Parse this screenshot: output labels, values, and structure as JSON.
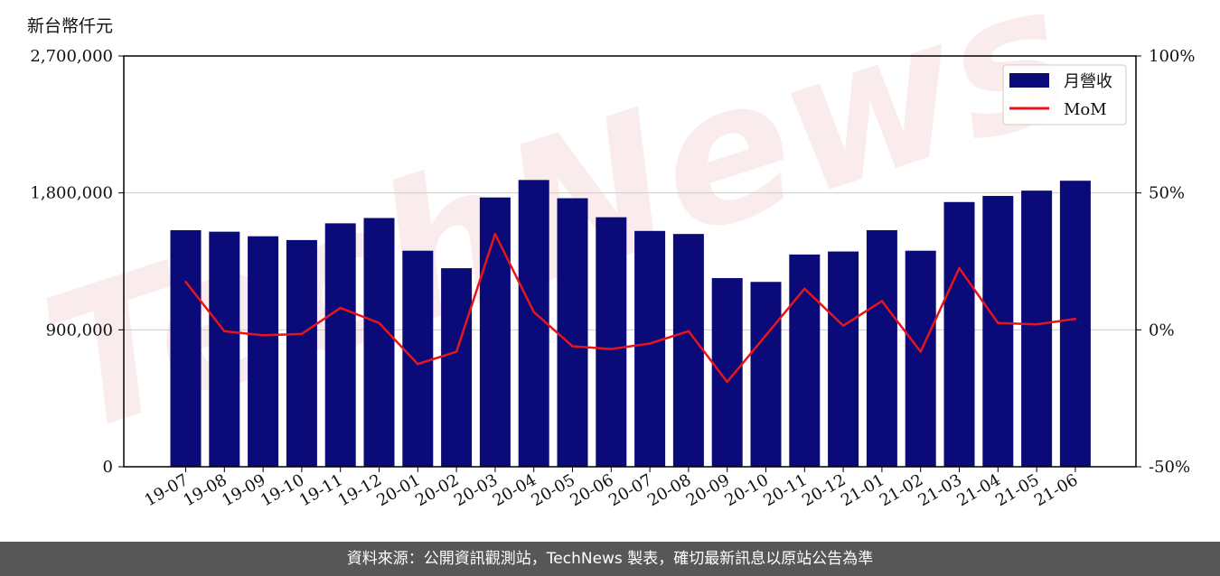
{
  "y_unit_label": "新台幣仟元",
  "footer": {
    "text": "資料來源：公開資訊觀測站，TechNews 製表，確切最新訊息以原站公告為準"
  },
  "watermark": "TechNews",
  "colors": {
    "bar": "#0a0a78",
    "line": "#e8141c",
    "footer_bg": "#575757",
    "grid": "#cccccc"
  },
  "chart_data": {
    "type": "bar",
    "categories": [
      "19-07",
      "19-08",
      "19-09",
      "19-10",
      "19-11",
      "19-12",
      "20-01",
      "20-02",
      "20-03",
      "20-04",
      "20-05",
      "20-06",
      "20-07",
      "20-08",
      "20-09",
      "20-10",
      "20-11",
      "20-12",
      "21-01",
      "21-02",
      "21-03",
      "21-04",
      "21-05",
      "21-06"
    ],
    "series": [
      {
        "name": "月營收",
        "type": "bar",
        "axis": "left",
        "values": [
          1555000,
          1545000,
          1515000,
          1490000,
          1600000,
          1635000,
          1420000,
          1305000,
          1770000,
          1885000,
          1765000,
          1640000,
          1550000,
          1530000,
          1240000,
          1215000,
          1395000,
          1415000,
          1555000,
          1420000,
          1740000,
          1780000,
          1815000,
          1880000
        ]
      },
      {
        "name": "MoM",
        "type": "line",
        "axis": "right",
        "values": [
          17.5,
          -0.5,
          -2,
          -1.5,
          8,
          2.5,
          -12.5,
          -8,
          35,
          6.5,
          -6,
          -7,
          -5,
          -0.5,
          -19,
          -2,
          15,
          1.5,
          10.5,
          -8,
          22.5,
          2.5,
          2,
          4
        ]
      }
    ],
    "yticks_left": [
      "0",
      "900,000",
      "1,800,000",
      "2,700,000"
    ],
    "yticks_right": [
      "-50%",
      "0%",
      "50%",
      "100%"
    ],
    "ylim_left": [
      0,
      2700000
    ],
    "ylim_right": [
      -50,
      100
    ],
    "grid": "horizontal",
    "legend": "top-right"
  }
}
